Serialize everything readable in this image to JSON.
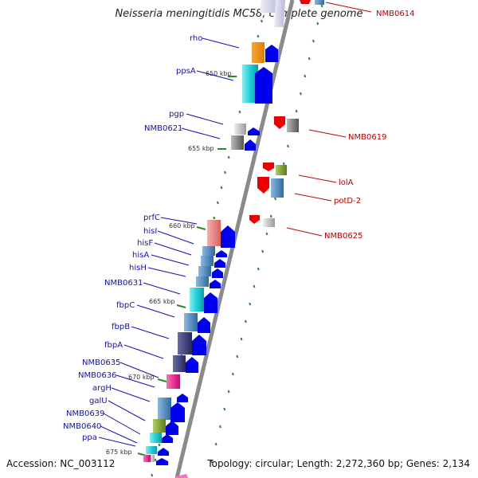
{
  "title": "Neisseria meningitidis MC58, complete genome",
  "accession": "Accession: NC_003112",
  "topology": "Topology: circular; Length: 2,272,360 bp; Genes: 2,134",
  "ticks": [
    "650 kbp",
    "655 kbp",
    "660 kbp",
    "665 kbp",
    "670 kbp",
    "675 kbp"
  ],
  "forward_genes": [
    "rho",
    "ppsA",
    "pgp",
    "NMB0621",
    "prfC",
    "hisI",
    "hisF",
    "hisA",
    "hisH",
    "NMB0631",
    "fbpC",
    "fbpB",
    "fbpA",
    "NMB0635",
    "NMB0636",
    "argH",
    "galU",
    "NMB0639",
    "NMB0640",
    "ppa"
  ],
  "reverse_genes": [
    "NMB0614",
    "NMB0619",
    "lolA",
    "potD-2",
    "NMB0625"
  ],
  "colors": {
    "forward_arrow": "#0000ee",
    "reverse_arrow": "#ee0000",
    "forward_label": "#1010c0",
    "reverse_label": "#c00000",
    "backbone": "#8a8a8a",
    "tick": "#2a8a2a"
  }
}
